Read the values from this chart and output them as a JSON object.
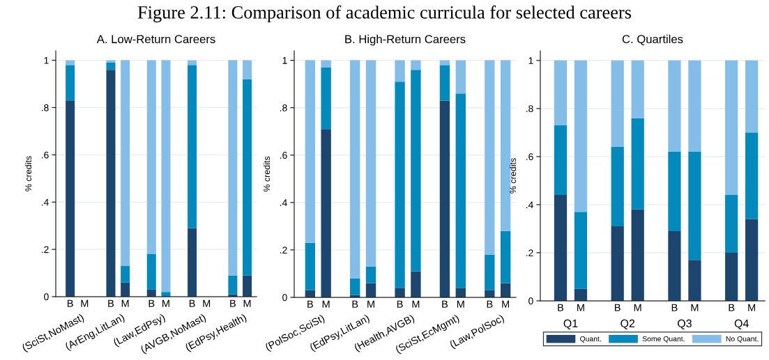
{
  "chart_data": [
    {
      "type": "bar",
      "stacked": true,
      "title": "Figure 2.11: Comparison of academic curricula for selected careers",
      "subtitle": "A. Low-Return Careers",
      "ylabel": "% credits",
      "categories": [
        "B",
        "M",
        "B",
        "M",
        "B",
        "M",
        "B",
        "M",
        "B",
        "M"
      ],
      "annotations": [
        "(SciSt,NoMast)",
        "(ArEng,LitLan)",
        "(Law,EdPsy)",
        "(AVGB,NoMast)",
        "(EdPsy,Health)"
      ],
      "series": [
        {
          "color": "#1c466e",
          "values": [
            0.83,
            null,
            0.96,
            0.06,
            0.03,
            0,
            0.29,
            null,
            0.01,
            0.09
          ]
        },
        {
          "color": "#0489bc",
          "values": [
            0.15,
            null,
            0.03,
            0.07,
            0.15,
            0.02,
            0.69,
            null,
            0.08,
            0.83
          ]
        },
        {
          "color": "#84bee8",
          "values": [
            0.02,
            null,
            0.01,
            0.87,
            0.82,
            0.98,
            0.02,
            null,
            0.91,
            0.08
          ]
        }
      ],
      "ylim": [
        0,
        1.04
      ],
      "yticks": [
        0,
        {
          "value": 0.2,
          "label": ".2"
        },
        {
          "value": 0.4,
          "label": ".4"
        },
        {
          "value": 0.6,
          "label": ".6"
        },
        {
          "value": 0.8,
          "label": ".8"
        },
        1
      ],
      "grid": "y",
      "legend": false
    },
    {
      "type": "bar",
      "stacked": true,
      "subtitle": "B. High-Return Careers",
      "ylabel": "% credits",
      "categories": [
        "B",
        "M",
        "B",
        "M",
        "B",
        "M",
        "B",
        "M",
        "B",
        "M"
      ],
      "annotations": [
        "(PolSoc,SciSt)",
        "(EdPsy,LitLan)",
        "(Health,AVGB)",
        "(SciSt,EcMgmt)",
        "(Law,PolSoc)"
      ],
      "series": [
        {
          "color": "#1c466e",
          "values": [
            0.03,
            0.71,
            0.01,
            0.06,
            0.04,
            0.11,
            0.83,
            0.04,
            0.03,
            0.06
          ]
        },
        {
          "color": "#0489bc",
          "values": [
            0.2,
            0.26,
            0.07,
            0.07,
            0.87,
            0.85,
            0.15,
            0.82,
            0.15,
            0.22
          ]
        },
        {
          "color": "#84bee8",
          "values": [
            0.77,
            0.03,
            0.92,
            0.87,
            0.09,
            0.04,
            0.02,
            0.14,
            0.82,
            0.72
          ]
        }
      ],
      "ylim": [
        0,
        1.04
      ],
      "yticks": [
        0,
        {
          "value": 0.2,
          "label": ".2"
        },
        {
          "value": 0.4,
          "label": ".4"
        },
        {
          "value": 0.6,
          "label": ".6"
        },
        {
          "value": 0.8,
          "label": ".8"
        },
        1
      ],
      "grid": "y",
      "legend": false
    },
    {
      "type": "bar",
      "stacked": true,
      "subtitle": "C. Quartiles",
      "ylabel": "% credits",
      "categories": [
        "B",
        "M",
        "B",
        "M",
        "B",
        "M",
        "B",
        "M"
      ],
      "annotations": [
        "Q1",
        "Q2",
        "Q3",
        "Q4"
      ],
      "series": [
        {
          "name": "Quant.",
          "color": "#1c466e",
          "values": [
            0.44,
            0.05,
            0.31,
            0.38,
            0.29,
            0.17,
            0.2,
            0.34
          ]
        },
        {
          "name": "Some Quant.",
          "color": "#0489bc",
          "values": [
            0.29,
            0.32,
            0.33,
            0.38,
            0.33,
            0.45,
            0.24,
            0.36
          ]
        },
        {
          "name": "No Quant.",
          "color": "#84bee8",
          "values": [
            0.27,
            0.63,
            0.36,
            0.24,
            0.38,
            0.38,
            0.56,
            0.3
          ]
        }
      ],
      "ylim": [
        0,
        1.04
      ],
      "yticks": [
        0,
        {
          "value": 0.2,
          "label": ".2"
        },
        {
          "value": 0.4,
          "label": ".4"
        },
        {
          "value": 0.6,
          "label": ".6"
        },
        {
          "value": 0.8,
          "label": ".8"
        },
        1
      ],
      "grid": "y",
      "legend": "bottom"
    }
  ]
}
